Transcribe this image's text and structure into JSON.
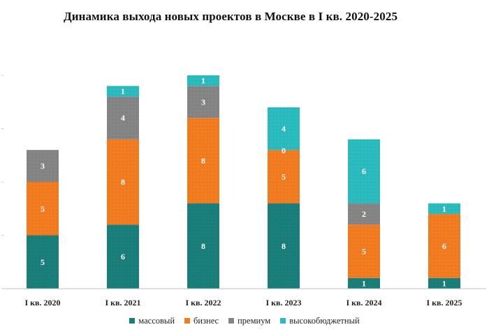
{
  "chart_data": {
    "type": "bar",
    "stacked": true,
    "title": "Динамика выхода новых проектов в Москве в I кв. 2020-2025",
    "categories": [
      "I кв. 2020",
      "I кв. 2021",
      "I кв. 2022",
      "I кв. 2023",
      "I кв. 2024",
      "I кв. 2025"
    ],
    "series": [
      {
        "name": "массовый",
        "color": "#1a7f7a",
        "values": [
          5,
          6,
          8,
          8,
          1,
          1
        ]
      },
      {
        "name": "бизнес",
        "color": "#f37c20",
        "values": [
          5,
          8,
          8,
          5,
          5,
          6
        ]
      },
      {
        "name": "премиум",
        "color": "#858585",
        "values": [
          3,
          4,
          3,
          null,
          2,
          null
        ]
      },
      {
        "name": "высокобюджетный",
        "color": "#2bbcc0",
        "values": [
          null,
          1,
          1,
          4,
          6,
          1
        ]
      }
    ],
    "extra_labels": [
      {
        "category": "I кв. 2023",
        "series": "премиум",
        "label": "0"
      }
    ],
    "ylim": [
      0,
      20
    ],
    "grid": false,
    "legend": "bottom",
    "xlabel": "",
    "ylabel": ""
  }
}
